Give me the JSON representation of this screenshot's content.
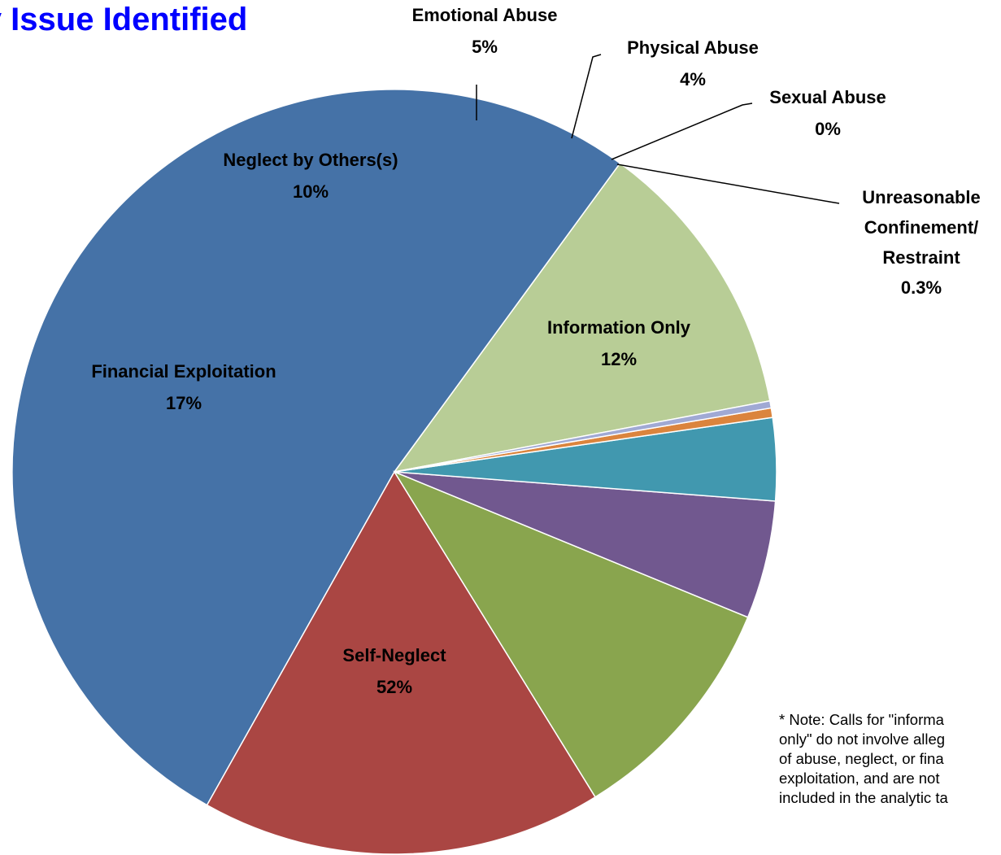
{
  "chart_data": {
    "type": "pie",
    "title": "ary Issue Identified",
    "note": "* Note: Calls for \"informa\nonly\" do not involve alleg\nof abuse, neglect, or fina\nexploitation, and are not\nincluded in the analytic ta",
    "slices": [
      {
        "name": "Information Only",
        "value": 12,
        "display": "12%",
        "color": "#b8cd96"
      },
      {
        "name": "Self-Neglect",
        "value": 52,
        "display": "52%",
        "color": "#4572a7"
      },
      {
        "name": "Financial Exploitation",
        "value": 17,
        "display": "17%",
        "color": "#aa4643"
      },
      {
        "name": "Neglect by Others(s)",
        "value": 10,
        "display": "10%",
        "color": "#89a54e"
      },
      {
        "name": "Emotional Abuse",
        "value": 5,
        "display": "5%",
        "color": "#71588f"
      },
      {
        "name": "Physical Abuse",
        "value": 3.5,
        "display": "4%",
        "color": "#4198af"
      },
      {
        "name": "Sexual Abuse",
        "value": 0.4,
        "display": "0%",
        "color": "#db843d"
      },
      {
        "name": "Unreasonable Confinement/ Restraint",
        "value": 0.3,
        "display": "0.3%",
        "color": "#a0a9d4"
      }
    ]
  }
}
